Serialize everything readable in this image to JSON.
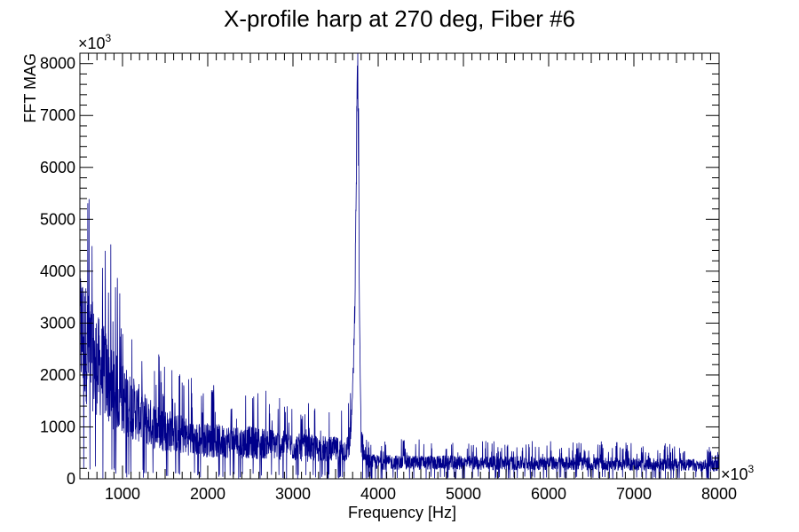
{
  "chart_data": {
    "type": "line",
    "title": "X-profile harp at 270 deg, Fiber #6",
    "xlabel": "Frequency [Hz]",
    "ylabel": "FFT MAG",
    "x_multiplier": "×10",
    "x_multiplier_exp": "3",
    "y_multiplier": "×10",
    "y_multiplier_exp": "3",
    "xlim": [
      500,
      8000
    ],
    "ylim": [
      0,
      8200
    ],
    "x_ticks": [
      1000,
      2000,
      3000,
      4000,
      5000,
      6000,
      7000,
      8000
    ],
    "x_tick_labels": [
      "1000",
      "2000",
      "3000",
      "4000",
      "5000",
      "6000",
      "7000",
      "8000"
    ],
    "y_ticks": [
      0,
      1000,
      2000,
      3000,
      4000,
      5000,
      6000,
      7000,
      8000
    ],
    "y_tick_labels": [
      "0",
      "1000",
      "2000",
      "3000",
      "4000",
      "5000",
      "6000",
      "7000",
      "8000"
    ],
    "grid": false,
    "legend": false,
    "line_color": "#00008b",
    "series": [
      {
        "envelope_x": [
          500,
          600,
          700,
          800,
          900,
          1000,
          1100,
          1200,
          1300,
          1400,
          1500,
          1600,
          1700,
          1800,
          1900,
          2000,
          2100,
          2200,
          2300,
          2400,
          2500,
          2600,
          2700,
          2800,
          2900,
          3000,
          3100,
          3200,
          3300,
          3400,
          3500,
          3600,
          3650,
          3680,
          3700,
          3720,
          3740,
          3750,
          3760,
          3770,
          3780,
          3800,
          3850,
          3900,
          4000,
          4500,
          5000,
          5500,
          6000,
          6500,
          7000,
          7500,
          8000
        ],
        "envelope_y": [
          2900,
          2500,
          2200,
          2000,
          1700,
          1550,
          1400,
          1250,
          1100,
          1000,
          950,
          900,
          850,
          800,
          780,
          750,
          730,
          720,
          720,
          710,
          700,
          690,
          680,
          660,
          640,
          620,
          600,
          590,
          580,
          570,
          560,
          550,
          600,
          900,
          1700,
          2700,
          5000,
          7500,
          7800,
          6500,
          3000,
          800,
          330,
          330,
          320,
          310,
          310,
          300,
          300,
          290,
          280,
          270,
          250
        ],
        "noise_fraction": 0.45,
        "peak_x": 3760,
        "peak_y": 7800
      }
    ]
  }
}
